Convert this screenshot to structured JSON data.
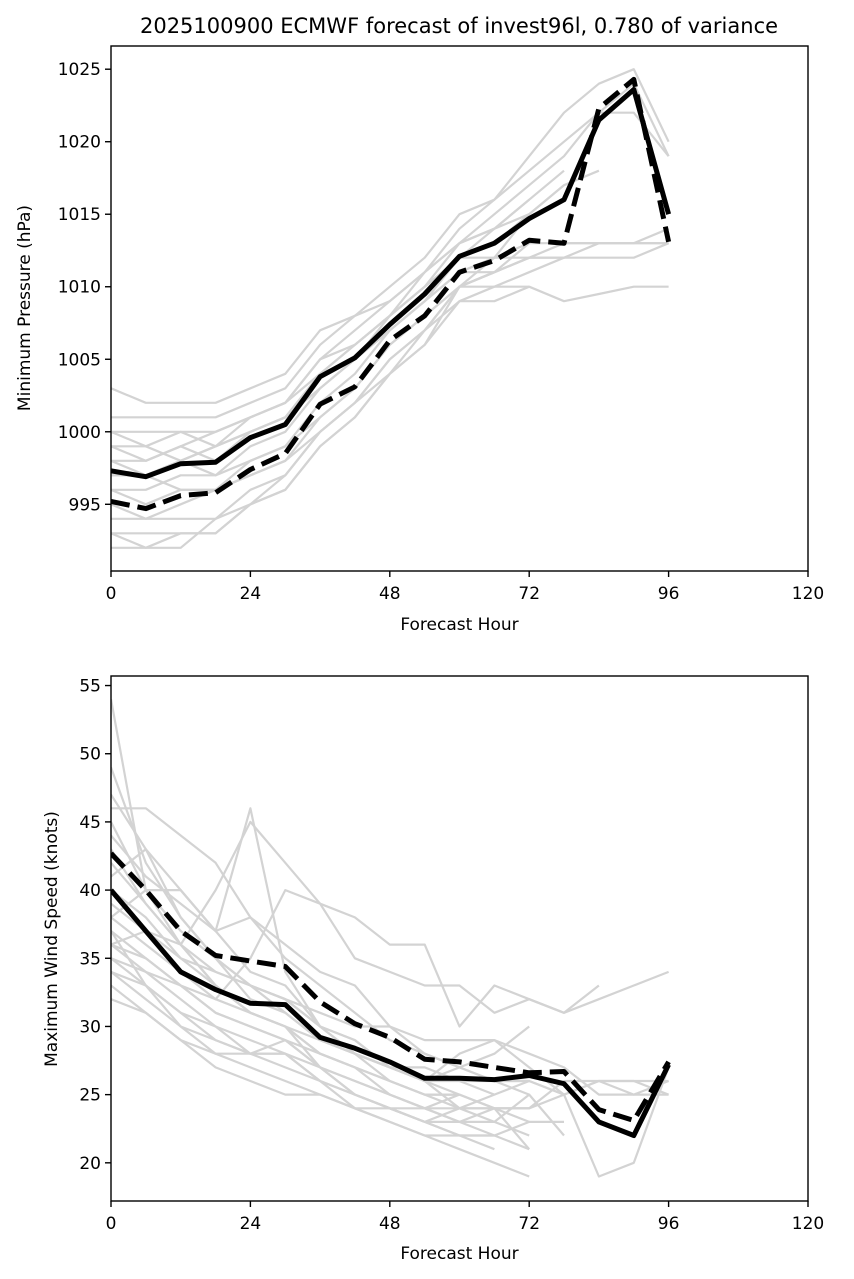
{
  "chart_data": [
    {
      "type": "line",
      "title": "2025100900 ECMWF forecast of invest96l, 0.780 of variance",
      "xlabel": "Forecast Hour",
      "ylabel": "Minimum Pressure (hPa)",
      "xlim": [
        0,
        120
      ],
      "ylim": [
        990.4,
        1026.6
      ],
      "xticks": [
        0,
        24,
        48,
        72,
        96,
        120
      ],
      "yticks": [
        995,
        1000,
        1005,
        1010,
        1015,
        1020,
        1025
      ],
      "grid": false,
      "x": [
        0,
        6,
        12,
        18,
        24,
        30,
        36,
        42,
        48,
        54,
        60,
        66,
        72,
        78,
        84,
        90,
        96
      ],
      "series": [
        {
          "name": "mean-solid",
          "style": "solid",
          "color": "#000000",
          "values": [
            997.3,
            996.9,
            997.8,
            997.9,
            999.6,
            1000.5,
            1003.8,
            1005.1,
            1007.4,
            1009.5,
            1012.1,
            1013.0,
            1014.7,
            1016.0,
            1021.5,
            1023.6,
            1015.0
          ]
        },
        {
          "name": "mean-dashed",
          "style": "dashed",
          "color": "#000000",
          "values": [
            995.2,
            994.7,
            995.6,
            995.8,
            997.4,
            998.5,
            1001.9,
            1003.1,
            1006.3,
            1008.0,
            1011.0,
            1011.8,
            1013.2,
            1013.0,
            1022.3,
            1024.3,
            1013.1
          ]
        }
      ],
      "members_color": "#d3d3d3",
      "members": [
        [
          1003,
          1002,
          1002,
          1002,
          1003,
          1004,
          1007,
          1008,
          1010,
          1012,
          1015,
          1016,
          1019,
          1022,
          1024,
          1025,
          1020
        ],
        [
          1001,
          1001,
          1001,
          1001,
          1002,
          1003,
          1006,
          1008,
          1009,
          1011,
          1014,
          1016,
          1018,
          1020,
          1022,
          1022,
          1019
        ],
        [
          1000,
          999,
          1000,
          999,
          1001,
          1002,
          1005,
          1007,
          1009,
          1011,
          1013,
          1015,
          1017,
          1019,
          1022,
          1024,
          1019
        ],
        [
          1000,
          1000,
          1000,
          1000,
          1001,
          1002,
          1005,
          1006,
          1008,
          1010,
          1013,
          1014,
          1016,
          null,
          null,
          null,
          null
        ],
        [
          999,
          998,
          999,
          1000,
          1001,
          1002,
          1004,
          1006,
          1008,
          1010,
          1012,
          1014,
          1016,
          1018,
          null,
          null,
          null
        ],
        [
          999,
          999,
          998,
          999,
          1000,
          1001,
          1004,
          1005,
          1007,
          1009,
          1012,
          1013,
          1015,
          1017,
          null,
          null,
          null
        ],
        [
          998,
          998,
          999,
          998,
          1000,
          1001,
          1003,
          1005,
          1007,
          1009,
          1011,
          1012,
          1013,
          1013,
          1013,
          1013,
          1013
        ],
        [
          997,
          997,
          998,
          997,
          999,
          1000,
          1003,
          1005,
          1008,
          1010,
          1012,
          1012,
          1012,
          1013,
          1013,
          1013,
          1014
        ],
        [
          996,
          996,
          997,
          997,
          998,
          999,
          1002,
          1004,
          1007,
          1009,
          1011,
          1011,
          1012,
          1012,
          1013,
          1013,
          1013
        ],
        [
          996,
          995,
          996,
          996,
          998,
          999,
          1001,
          1003,
          1006,
          1008,
          1010,
          1011,
          1012,
          1012,
          1012,
          1012,
          1013
        ],
        [
          995,
          994,
          995,
          996,
          997,
          998,
          1001,
          1003,
          1006,
          1008,
          1010,
          1010,
          1010,
          1009,
          1009.5,
          1010,
          1010
        ],
        [
          994,
          994,
          994,
          994,
          996,
          997,
          1000,
          1002,
          1005,
          1007,
          1009,
          1009,
          1010,
          null,
          null,
          null,
          null
        ],
        [
          993,
          993,
          993,
          993,
          995,
          996,
          999,
          1001,
          1004,
          1006,
          1009,
          1010,
          1011,
          1012,
          null,
          null,
          null
        ],
        [
          993,
          992,
          992,
          994,
          995,
          996,
          999,
          1001,
          1004,
          1006,
          1010,
          1011,
          1012,
          null,
          null,
          null,
          null
        ],
        [
          992,
          992,
          993,
          993,
          995,
          997,
          1000,
          1002,
          1005,
          1007,
          1010,
          1011,
          1013,
          null,
          null,
          null,
          null
        ],
        [
          997,
          997,
          996,
          996,
          997,
          998,
          1000,
          1002,
          1004,
          1007,
          1010,
          1012,
          1015,
          1017,
          1018,
          null,
          null
        ],
        [
          998,
          997,
          998,
          999,
          1000,
          1001,
          1004,
          1006,
          1008,
          1011,
          1013,
          1014,
          1015,
          null,
          null,
          null,
          null
        ]
      ]
    },
    {
      "type": "line",
      "title": "",
      "xlabel": "Forecast Hour",
      "ylabel": "Maximum Wind Speed (knots)",
      "xlim": [
        0,
        120
      ],
      "ylim": [
        17.2,
        55.7
      ],
      "xticks": [
        0,
        24,
        48,
        72,
        96,
        120
      ],
      "yticks": [
        20,
        25,
        30,
        35,
        40,
        45,
        50,
        55
      ],
      "grid": false,
      "x": [
        0,
        6,
        12,
        18,
        24,
        30,
        36,
        42,
        48,
        54,
        60,
        66,
        72,
        78,
        84,
        90,
        96
      ],
      "series": [
        {
          "name": "mean-solid",
          "style": "solid",
          "color": "#000000",
          "values": [
            40.0,
            37.0,
            34.0,
            32.7,
            31.7,
            31.6,
            29.2,
            28.4,
            27.4,
            26.2,
            26.2,
            26.1,
            26.4,
            25.8,
            23.0,
            22.0,
            27.2
          ]
        },
        {
          "name": "mean-dashed",
          "style": "dashed",
          "color": "#000000",
          "values": [
            42.7,
            40.0,
            37.0,
            35.2,
            34.8,
            34.4,
            31.8,
            30.2,
            29.2,
            27.6,
            27.4,
            27.0,
            26.6,
            26.7,
            23.9,
            23.1,
            27.4
          ]
        }
      ],
      "members_color": "#d3d3d3",
      "members": [
        [
          54,
          40,
          36,
          33,
          31,
          30,
          28,
          27,
          26,
          25,
          25,
          null,
          null,
          null,
          null,
          null,
          null
        ],
        [
          49,
          42,
          38,
          35,
          33,
          31,
          29,
          28,
          27,
          26,
          26,
          25,
          null,
          null,
          null,
          null,
          null
        ],
        [
          46,
          46,
          44,
          42,
          38,
          35,
          33,
          31,
          29,
          28,
          27,
          26,
          25,
          null,
          null,
          null,
          null
        ],
        [
          38,
          40,
          40,
          37,
          46,
          34,
          30,
          28,
          27,
          26,
          25,
          null,
          null,
          null,
          null,
          null,
          null
        ],
        [
          36,
          37,
          36,
          40,
          45,
          42,
          39,
          35,
          34,
          33,
          33,
          31,
          32,
          31,
          33,
          null,
          null
        ],
        [
          35,
          34,
          33,
          32,
          35,
          40,
          39,
          38,
          36,
          36,
          30,
          33,
          32,
          31,
          32,
          33,
          34
        ],
        [
          44,
          41,
          39,
          37,
          38,
          36,
          34,
          33,
          30,
          28,
          27,
          28,
          30,
          null,
          null,
          null,
          null
        ],
        [
          42,
          39,
          36,
          34,
          33,
          32,
          31,
          30,
          30,
          29,
          29,
          29,
          28,
          27,
          25,
          25,
          25
        ],
        [
          40,
          38,
          35,
          34,
          33,
          32,
          30,
          28,
          27,
          27,
          26,
          26,
          26,
          25,
          26,
          26,
          25
        ],
        [
          38,
          36,
          34,
          32,
          31,
          30,
          29,
          28,
          27,
          26,
          24,
          24,
          24,
          25,
          19,
          20,
          27
        ],
        [
          37,
          35,
          33,
          31,
          30,
          29,
          28,
          27,
          26,
          25,
          24,
          24,
          24,
          26,
          26,
          25,
          26
        ],
        [
          36,
          34,
          32,
          30,
          29,
          28,
          27,
          26,
          25,
          24,
          23,
          22,
          23,
          23,
          null,
          null,
          null
        ],
        [
          35,
          33,
          31,
          29,
          28,
          28,
          26,
          25,
          24,
          23,
          22,
          21,
          null,
          null,
          null,
          null,
          null
        ],
        [
          34,
          32,
          30,
          28,
          27,
          26,
          25,
          24,
          23,
          22,
          21,
          20,
          19,
          null,
          null,
          null,
          null
        ],
        [
          33,
          31,
          29,
          27,
          26,
          25,
          25,
          24,
          24,
          23,
          22,
          22,
          null,
          null,
          null,
          null,
          null
        ],
        [
          32,
          31,
          29,
          28,
          28,
          29,
          27,
          25,
          24,
          24,
          25,
          24,
          23,
          null,
          null,
          null,
          null
        ],
        [
          41,
          43,
          40,
          37,
          34,
          33,
          30,
          29,
          27,
          26,
          28,
          29,
          27,
          25,
          26,
          26,
          26
        ],
        [
          47,
          43,
          38,
          35,
          32,
          31,
          29,
          28,
          26,
          25,
          25,
          24,
          24,
          null,
          null,
          null,
          null
        ],
        [
          39,
          37,
          35,
          33,
          31,
          30,
          27,
          25,
          24,
          23,
          23,
          24,
          21,
          null,
          null,
          null,
          null
        ],
        [
          36,
          35,
          33,
          31,
          30,
          29,
          27,
          26,
          25,
          24,
          24,
          23,
          25,
          22,
          null,
          null,
          null
        ],
        [
          43,
          39,
          36,
          33,
          31,
          30,
          28,
          27,
          25,
          24,
          23,
          23,
          22,
          null,
          null,
          null,
          null
        ],
        [
          37,
          33,
          30,
          29,
          28,
          28,
          26,
          24,
          23,
          22,
          22,
          22,
          21,
          null,
          null,
          null,
          null
        ],
        [
          45,
          40,
          37,
          35,
          33,
          32,
          30,
          29,
          27,
          26,
          27,
          26,
          26,
          null,
          null,
          null,
          null
        ],
        [
          34,
          33,
          31,
          30,
          28,
          27,
          26,
          25,
          24,
          23,
          24,
          25,
          26,
          25,
          null,
          null,
          null
        ]
      ]
    }
  ]
}
